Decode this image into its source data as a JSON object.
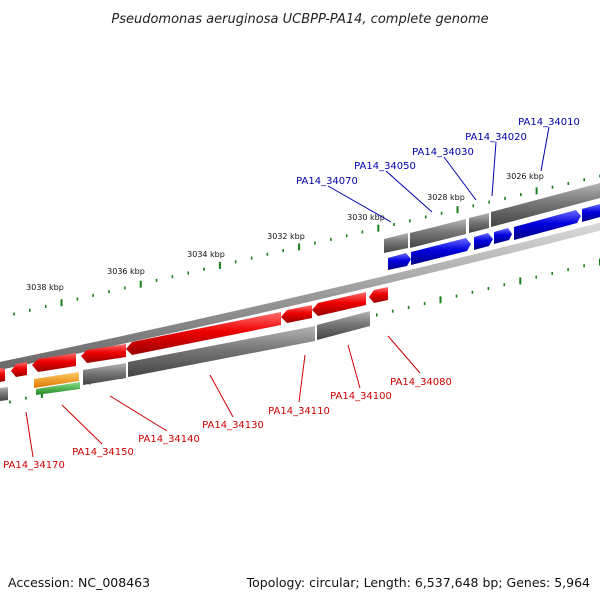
{
  "title": "Pseudomonas aeruginosa UCBPP-PA14, complete genome",
  "footer": {
    "accession": "Accession: NC_008463",
    "summary": "Topology: circular; Length: 6,537,648 bp; Genes: 5,964"
  },
  "colors": {
    "forward_gene": "#0000dd",
    "reverse_gene": "#ee0000",
    "cds_gray": "#777777",
    "tick": "#1a7f1a",
    "forward_label": "#0000aa",
    "reverse_label": "#cc0000",
    "orange": "#ff9900",
    "green": "#33aa33"
  },
  "ticks": [
    {
      "label": "3026 kbp"
    },
    {
      "label": "3028 kbp"
    },
    {
      "label": "3030 kbp"
    },
    {
      "label": "3032 kbp"
    },
    {
      "label": "3034 kbp"
    },
    {
      "label": "3036 kbp"
    },
    {
      "label": "3038 kbp"
    }
  ],
  "forward_genes": [
    {
      "label": "PA14_34010"
    },
    {
      "label": "PA14_34020"
    },
    {
      "label": "PA14_34030"
    },
    {
      "label": "PA14_34050"
    },
    {
      "label": "PA14_34070"
    }
  ],
  "reverse_genes": [
    {
      "label": "PA14_34080"
    },
    {
      "label": "PA14_34100"
    },
    {
      "label": "PA14_34110"
    },
    {
      "label": "PA14_34130"
    },
    {
      "label": "PA14_34140"
    },
    {
      "label": "PA14_34150"
    },
    {
      "label": "PA14_34170"
    }
  ]
}
